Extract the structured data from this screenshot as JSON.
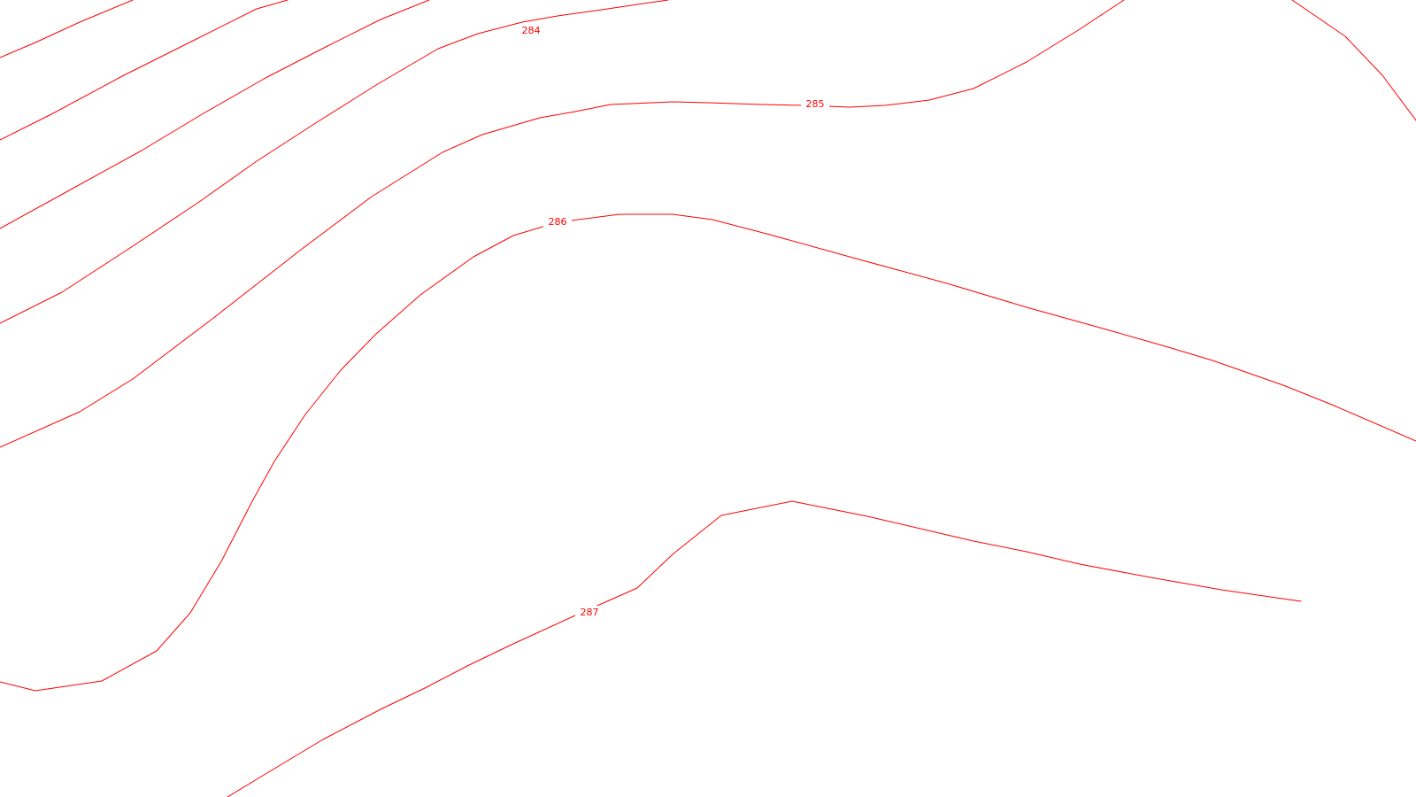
{
  "map": {
    "line_color": "#ff0000",
    "background_color": "#ffffff",
    "contour_labels": [
      {
        "id": "284",
        "text": "284"
      },
      {
        "id": "285",
        "text": "285"
      },
      {
        "id": "286",
        "text": "286"
      },
      {
        "id": "287",
        "text": "287"
      }
    ]
  }
}
